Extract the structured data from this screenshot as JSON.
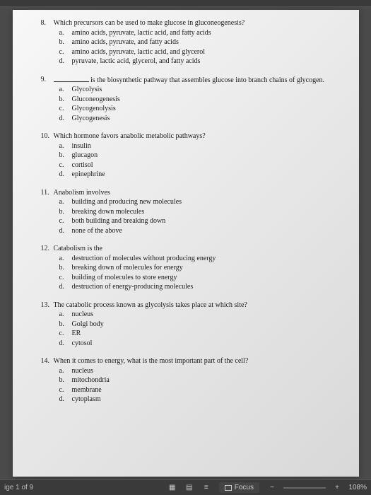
{
  "questions": [
    {
      "num": "8.",
      "text": "Which precursors can be used to make glucose in gluconeogenesis?",
      "options": [
        {
          "l": "a.",
          "t": "amino acids, pyruvate, lactic acid, and fatty acids"
        },
        {
          "l": "b.",
          "t": "amino acids, pyruvate, and fatty acids"
        },
        {
          "l": "c.",
          "t": "amino acids, pyruvate, lactic acid, and glycerol"
        },
        {
          "l": "d.",
          "t": "pyruvate, lactic acid, glycerol, and fatty acids"
        }
      ]
    },
    {
      "num": "9.",
      "text_before": "",
      "blank": true,
      "text_after": " is the biosynthetic pathway that assembles glucose into branch chains of glycogen.",
      "options": [
        {
          "l": "a.",
          "t": "Glycolysis"
        },
        {
          "l": "b.",
          "t": "Gluconeogenesis"
        },
        {
          "l": "c.",
          "t": "Glycogenolysis"
        },
        {
          "l": "d.",
          "t": "Glycogenesis"
        }
      ]
    },
    {
      "num": "10.",
      "text": "Which hormone favors anabolic metabolic pathways?",
      "options": [
        {
          "l": "a.",
          "t": "insulin"
        },
        {
          "l": "b.",
          "t": "glucagon"
        },
        {
          "l": "c.",
          "t": "cortisol"
        },
        {
          "l": "d.",
          "t": "epinephrine"
        }
      ]
    },
    {
      "num": "11.",
      "text": "Anabolism involves",
      "options": [
        {
          "l": "a.",
          "t": "building and producing new molecules"
        },
        {
          "l": "b.",
          "t": "breaking down molecules"
        },
        {
          "l": "c.",
          "t": "both building and breaking down"
        },
        {
          "l": "d.",
          "t": "none of the above"
        }
      ]
    },
    {
      "num": "12.",
      "text": "Catabolism is the",
      "options": [
        {
          "l": "a.",
          "t": "destruction of molecules without producing energy"
        },
        {
          "l": "b.",
          "t": "breaking down of molecules for energy"
        },
        {
          "l": "c.",
          "t": "building of molecules to store energy"
        },
        {
          "l": "d.",
          "t": "destruction of energy-producing molecules"
        }
      ]
    },
    {
      "num": "13.",
      "text": "The catabolic process known as glycolysis takes place at which site?",
      "options": [
        {
          "l": "a.",
          "t": "nucleus"
        },
        {
          "l": "b.",
          "t": "Golgi body"
        },
        {
          "l": "c.",
          "t": "ER"
        },
        {
          "l": "d.",
          "t": "cytosol"
        }
      ]
    },
    {
      "num": "14.",
      "text": "When it comes to energy, what is the most important part of the cell?",
      "options": [
        {
          "l": "a.",
          "t": "nucleus"
        },
        {
          "l": "b.",
          "t": "mitochondria"
        },
        {
          "l": "c.",
          "t": "membrane"
        },
        {
          "l": "d.",
          "t": "cytoplasm"
        }
      ]
    }
  ],
  "statusbar": {
    "page_info": "ige 1 of 9",
    "focus_label": "Focus",
    "zoom_minus": "−",
    "zoom_plus": "+",
    "zoom_value": "108%"
  }
}
